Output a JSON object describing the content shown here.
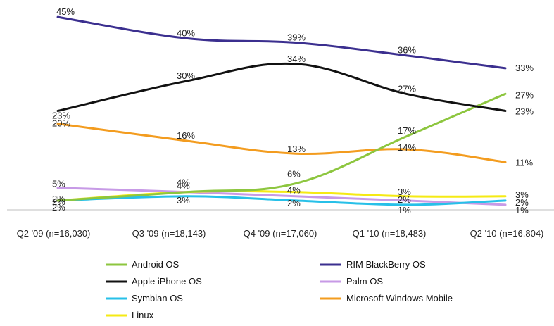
{
  "chart_data": {
    "type": "line",
    "title": "",
    "xlabel": "",
    "ylabel": "",
    "ylim": [
      0,
      47
    ],
    "grid": false,
    "legend_position": "bottom",
    "categories": [
      "Q2 '09 (n=16,030)",
      "Q3 '09 (n=18,143)",
      "Q4 '09 (n=17,060)",
      "Q1 '10 (n=18,483)",
      "Q2 '10 (n=16,804)"
    ],
    "series": [
      {
        "name": "Android OS",
        "color": "#8dc63f",
        "values": [
          2,
          4,
          6,
          17,
          27
        ],
        "labels": [
          "2%",
          "4%",
          "6%",
          "17%",
          "27%"
        ]
      },
      {
        "name": "Apple iPhone OS",
        "color": "#111111",
        "values": [
          23,
          30,
          34,
          27,
          23
        ],
        "labels": [
          "23%",
          "30%",
          "34%",
          "27%",
          "23%"
        ]
      },
      {
        "name": "Symbian OS",
        "color": "#27c0e8",
        "values": [
          2,
          3,
          2,
          1,
          2
        ],
        "labels": [
          "2%",
          "3%",
          "2%",
          "1%",
          "2%"
        ]
      },
      {
        "name": "Linux",
        "color": "#f5ea14",
        "values": [
          2,
          4,
          4,
          3,
          3
        ],
        "labels": [
          "2%",
          "4%",
          "4%",
          "3%",
          "3%"
        ]
      },
      {
        "name": "RIM BlackBerry OS",
        "color": "#3b2f8f",
        "values": [
          45,
          40,
          39,
          36,
          33
        ],
        "labels": [
          "45%",
          "40%",
          "39%",
          "36%",
          "33%"
        ]
      },
      {
        "name": "Palm OS",
        "color": "#c79ae6",
        "values": [
          5,
          4,
          3,
          2,
          1
        ],
        "labels": [
          "5%",
          "",
          "",
          "2%",
          "1%"
        ]
      },
      {
        "name": "Microsoft Windows Mobile",
        "color": "#f39c1f",
        "values": [
          20,
          16,
          13,
          14,
          11
        ],
        "labels": [
          "20%",
          "16%",
          "13%",
          "14%",
          "11%"
        ]
      }
    ]
  }
}
